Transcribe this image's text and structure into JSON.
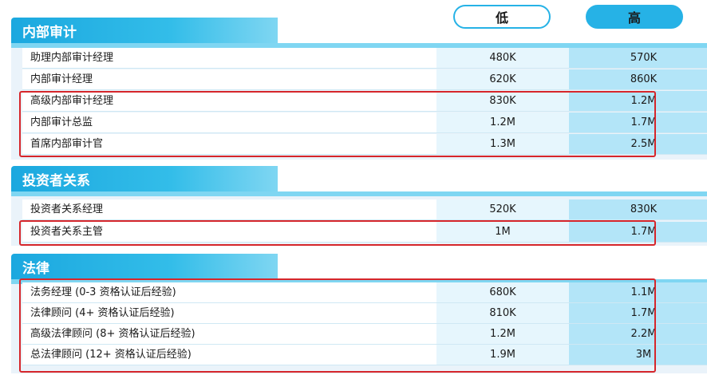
{
  "headers": {
    "low": "低",
    "high": "高"
  },
  "sections": [
    {
      "title": "内部审计",
      "rows": [
        {
          "role": "助理内部审计经理",
          "low": "480K",
          "high": "570K"
        },
        {
          "role": "内部审计经理",
          "low": "620K",
          "high": "860K"
        },
        {
          "role": "高级内部审计经理",
          "low": "830K",
          "high": "1.2M"
        },
        {
          "role": "内部审计总监",
          "low": "1.2M",
          "high": "1.7M"
        },
        {
          "role": "首席内部审计官",
          "low": "1.3M",
          "high": "2.5M"
        }
      ]
    },
    {
      "title": "投资者关系",
      "rows": [
        {
          "role": "投资者关系经理",
          "low": "520K",
          "high": "830K"
        },
        {
          "role": "投资者关系主管",
          "low": "1M",
          "high": "1.7M"
        }
      ]
    },
    {
      "title": "法律",
      "rows": [
        {
          "role": "法务经理 (0-3 资格认证后经验)",
          "low": "680K",
          "high": "1.1M"
        },
        {
          "role": "法律顾问 (4+ 资格认证后经验)",
          "low": "810K",
          "high": "1.7M"
        },
        {
          "role": "高级法律顾问 (8+ 资格认证后经验)",
          "low": "1.2M",
          "high": "2.2M"
        },
        {
          "role": "总法律顾问 (12+ 资格认证后经验)",
          "low": "1.9M",
          "high": "3M"
        }
      ]
    }
  ],
  "colors": {
    "accent": "#26b2e6",
    "highlight": "#d6262b"
  }
}
